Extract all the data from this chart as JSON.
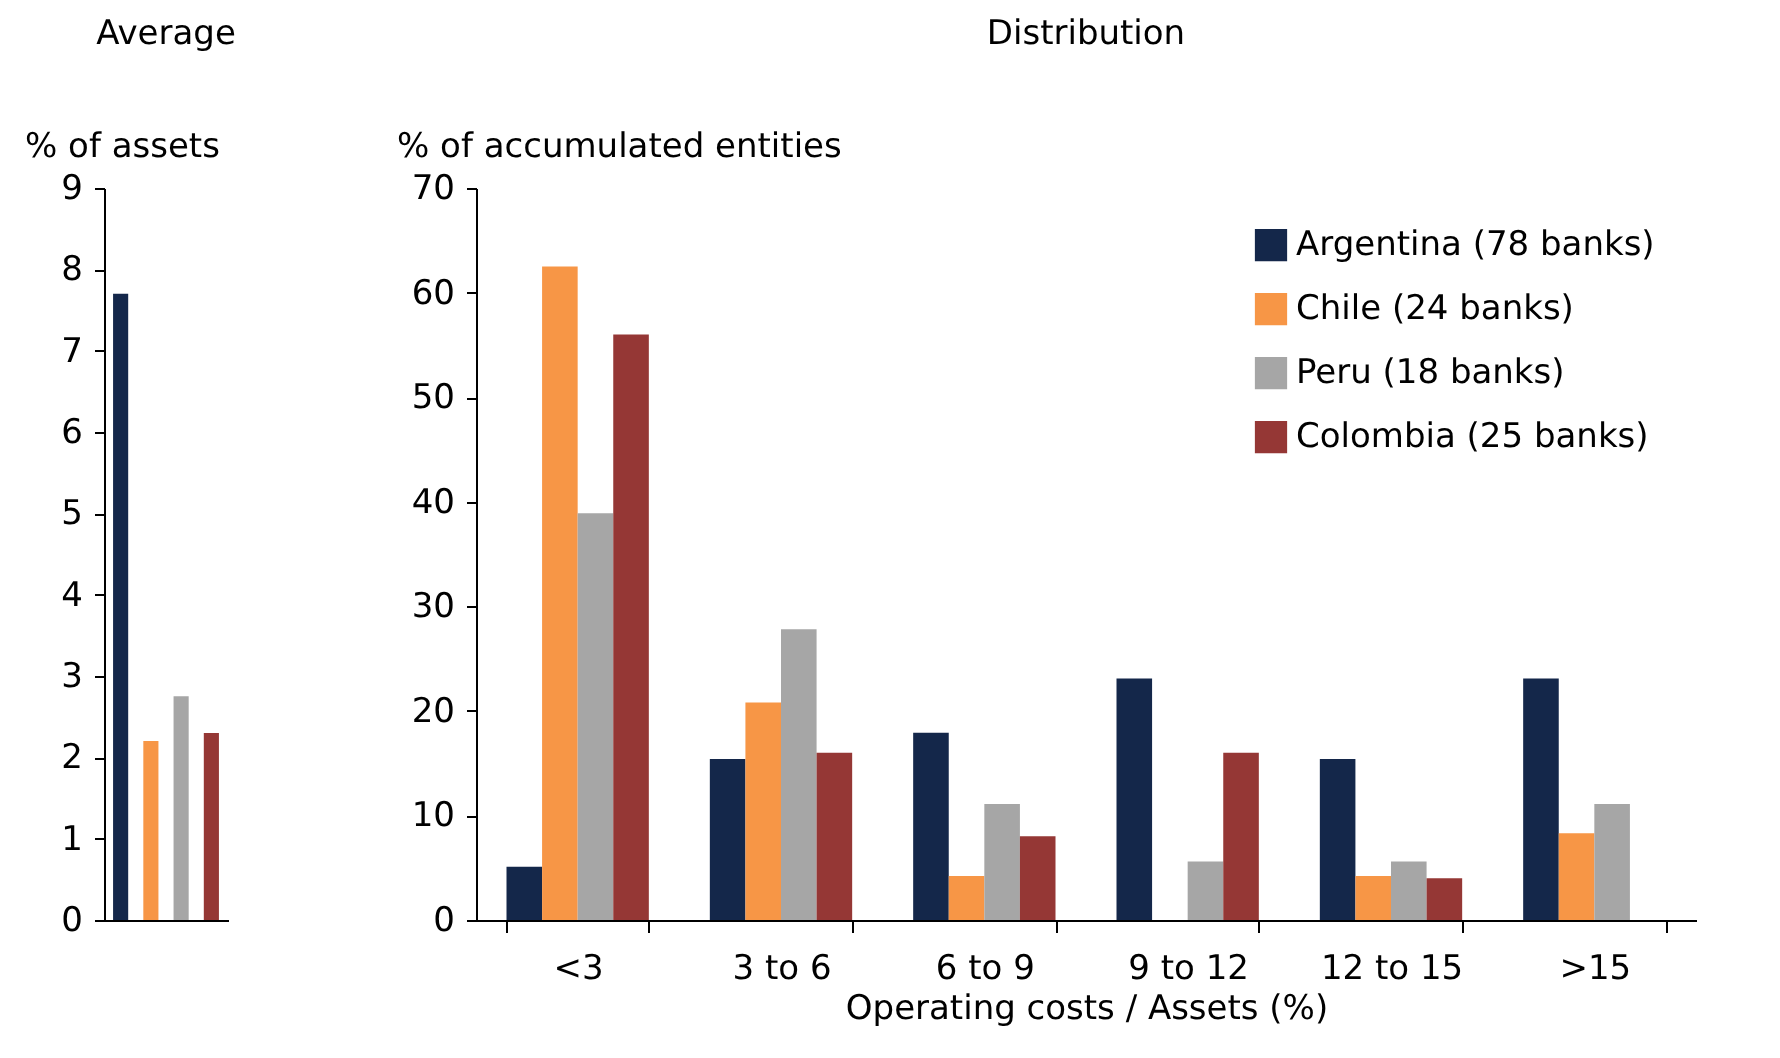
{
  "chart_data": [
    {
      "type": "bar",
      "title": "Average",
      "ylabel": "% of assets",
      "categories": [
        null,
        null,
        null,
        null
      ],
      "values": [
        7.7,
        2.2,
        2.75,
        2.3
      ],
      "colors": [
        "#14274a",
        "#f79646",
        "#a6a6a6",
        "#953735"
      ],
      "ylim": [
        0,
        9
      ],
      "yticks": [
        0,
        1,
        2,
        3,
        4,
        5,
        6,
        7,
        8,
        9
      ],
      "grid": false
    },
    {
      "type": "bar",
      "title": "Distribution",
      "ylabel": "% of accumulated entities",
      "xlabel": "Operating costs / Assets (%)",
      "categories": [
        "<3",
        "3 to 6",
        "6 to 9",
        "9 to 12",
        "12 to 15",
        ">15"
      ],
      "series": [
        {
          "name": "Argentina (78 banks)",
          "color": "#14274a",
          "values": [
            5.1,
            15.4,
            17.9,
            23.1,
            15.4,
            23.1
          ]
        },
        {
          "name": "Chile (24 banks)",
          "color": "#f79646",
          "values": [
            62.5,
            20.8,
            4.2,
            0,
            4.2,
            8.3
          ]
        },
        {
          "name": "Peru (18 banks)",
          "color": "#a6a6a6",
          "values": [
            38.9,
            27.8,
            11.1,
            5.6,
            5.6,
            11.1
          ]
        },
        {
          "name": "Colombia (25 banks)",
          "color": "#953735",
          "values": [
            56,
            16,
            8,
            16,
            4,
            0
          ]
        }
      ],
      "ylim": [
        0,
        70
      ],
      "yticks": [
        0,
        10,
        20,
        30,
        40,
        50,
        60,
        70
      ],
      "grid": false,
      "legend": "top right"
    }
  ]
}
